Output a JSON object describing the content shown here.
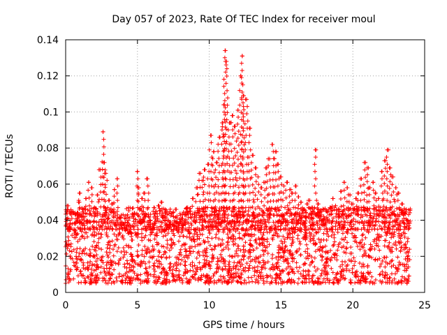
{
  "chart_data": {
    "type": "scatter",
    "title": "Day 057 of 2023, Rate Of TEC Index for receiver moul",
    "xlabel": "GPS time / hours",
    "ylabel": "ROTI / TECUs",
    "xlim": [
      0,
      25
    ],
    "ylim": [
      0,
      0.14
    ],
    "xticks": [
      0,
      5,
      10,
      15,
      20,
      25
    ],
    "xtick_labels": [
      "0",
      "5",
      "10",
      "15",
      "20",
      "25"
    ],
    "yticks": [
      0,
      0.02,
      0.04,
      0.06,
      0.08,
      0.1,
      0.12,
      0.14
    ],
    "ytick_labels": [
      "0",
      "0.02",
      "0.04",
      "0.06",
      "0.08",
      "0.1",
      "0.12",
      "0.14"
    ],
    "grid": true,
    "marker": "+",
    "color": "#ff0000",
    "series": [
      {
        "name": "ROTI",
        "note": "dense per-satellite samples over 0-24 h; representative subset",
        "x": [
          0.1,
          0.3,
          0.5,
          0.7,
          0.9,
          1.0,
          1.2,
          1.4,
          1.6,
          1.8,
          2.0,
          2.2,
          2.4,
          2.6,
          2.7,
          2.8,
          3.0,
          3.2,
          3.4,
          3.6,
          3.8,
          4.0,
          4.2,
          4.4,
          4.6,
          4.8,
          5.0,
          5.1,
          5.3,
          5.5,
          5.7,
          5.9,
          6.1,
          6.3,
          6.5,
          6.7,
          6.9,
          7.1,
          7.3,
          7.5,
          7.7,
          7.9,
          8.1,
          8.3,
          8.5,
          8.7,
          8.9,
          9.1,
          9.3,
          9.5,
          9.7,
          9.9,
          10.1,
          10.3,
          10.5,
          10.7,
          10.9,
          11.0,
          11.1,
          11.2,
          11.4,
          11.6,
          11.8,
          12.0,
          12.2,
          12.3,
          12.4,
          12.6,
          12.8,
          13.0,
          13.2,
          13.4,
          13.6,
          13.8,
          14.0,
          14.2,
          14.4,
          14.6,
          14.8,
          15.0,
          15.2,
          15.4,
          15.6,
          15.8,
          16.0,
          16.2,
          16.4,
          16.6,
          16.8,
          17.0,
          17.2,
          17.4,
          17.6,
          17.8,
          18.0,
          18.2,
          18.4,
          18.6,
          18.8,
          19.0,
          19.2,
          19.4,
          19.6,
          19.8,
          20.0,
          20.2,
          20.4,
          20.6,
          20.8,
          21.0,
          21.2,
          21.4,
          21.6,
          21.8,
          22.0,
          22.2,
          22.4,
          22.6,
          22.8,
          23.0,
          23.2,
          23.4,
          23.6,
          23.8
        ],
        "y": [
          0.048,
          0.036,
          0.044,
          0.032,
          0.05,
          0.055,
          0.046,
          0.052,
          0.061,
          0.058,
          0.047,
          0.054,
          0.068,
          0.089,
          0.072,
          0.066,
          0.051,
          0.049,
          0.057,
          0.063,
          0.041,
          0.038,
          0.035,
          0.033,
          0.029,
          0.044,
          0.067,
          0.058,
          0.052,
          0.055,
          0.063,
          0.04,
          0.036,
          0.045,
          0.048,
          0.05,
          0.034,
          0.037,
          0.039,
          0.042,
          0.046,
          0.038,
          0.041,
          0.043,
          0.047,
          0.045,
          0.052,
          0.058,
          0.066,
          0.062,
          0.068,
          0.071,
          0.087,
          0.078,
          0.072,
          0.086,
          0.094,
          0.104,
          0.134,
          0.128,
          0.094,
          0.098,
          0.092,
          0.101,
          0.12,
          0.131,
          0.109,
          0.107,
          0.091,
          0.076,
          0.069,
          0.064,
          0.058,
          0.061,
          0.069,
          0.074,
          0.082,
          0.078,
          0.071,
          0.064,
          0.059,
          0.061,
          0.057,
          0.055,
          0.059,
          0.053,
          0.05,
          0.046,
          0.049,
          0.051,
          0.047,
          0.079,
          0.049,
          0.043,
          0.041,
          0.045,
          0.047,
          0.052,
          0.048,
          0.046,
          0.056,
          0.061,
          0.058,
          0.054,
          0.049,
          0.052,
          0.055,
          0.063,
          0.072,
          0.069,
          0.058,
          0.061,
          0.055,
          0.052,
          0.067,
          0.073,
          0.079,
          0.069,
          0.064,
          0.058,
          0.055,
          0.049,
          0.044,
          0.04
        ]
      }
    ],
    "noise_band": {
      "x_range": [
        0,
        24
      ],
      "y_min": 0.005,
      "y_max": 0.035
    }
  }
}
